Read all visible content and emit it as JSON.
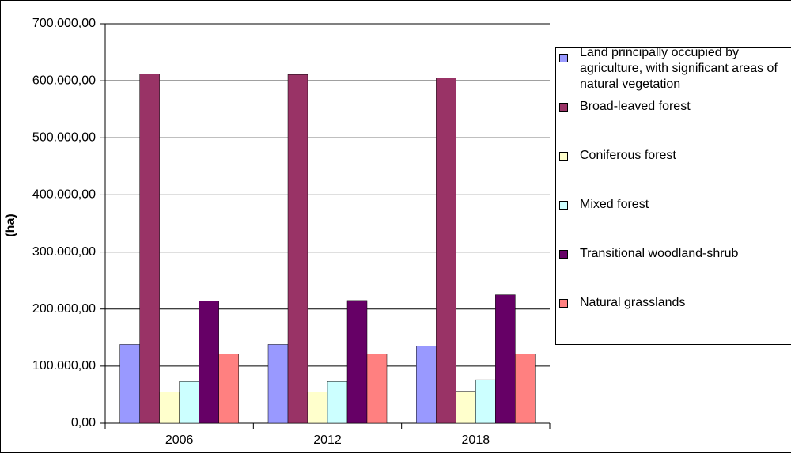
{
  "chart_data": {
    "type": "bar",
    "y_label": "(ha)",
    "categories": [
      "2006",
      "2012",
      "2018"
    ],
    "series": [
      {
        "name": "Land principally occupied by agriculture, with significant areas of natural vegetation",
        "color": "#9999ff",
        "values": [
          138000,
          138000,
          135000
        ]
      },
      {
        "name": "Broad-leaved forest",
        "color": "#993366",
        "values": [
          612000,
          611000,
          605000
        ]
      },
      {
        "name": "Coniferous forest",
        "color": "#ffffcc",
        "values": [
          55000,
          55000,
          56000
        ]
      },
      {
        "name": "Mixed forest",
        "color": "#ccffff",
        "values": [
          73000,
          73000,
          76000
        ]
      },
      {
        "name": "Transitional woodland-shrub",
        "color": "#660066",
        "values": [
          214000,
          215000,
          225000
        ]
      },
      {
        "name": "Natural grasslands",
        "color": "#ff8080",
        "values": [
          121000,
          121000,
          121000
        ]
      }
    ],
    "ylim": [
      0,
      700000
    ],
    "yticks": [
      {
        "value": 0,
        "label": "0,00"
      },
      {
        "value": 100000,
        "label": "100.000,00"
      },
      {
        "value": 200000,
        "label": "200.000,00"
      },
      {
        "value": 300000,
        "label": "300.000,00"
      },
      {
        "value": 400000,
        "label": "400.000,00"
      },
      {
        "value": 500000,
        "label": "500.000,00"
      },
      {
        "value": 600000,
        "label": "600.000,00"
      },
      {
        "value": 700000,
        "label": "700.000,00"
      }
    ],
    "grid": true
  }
}
